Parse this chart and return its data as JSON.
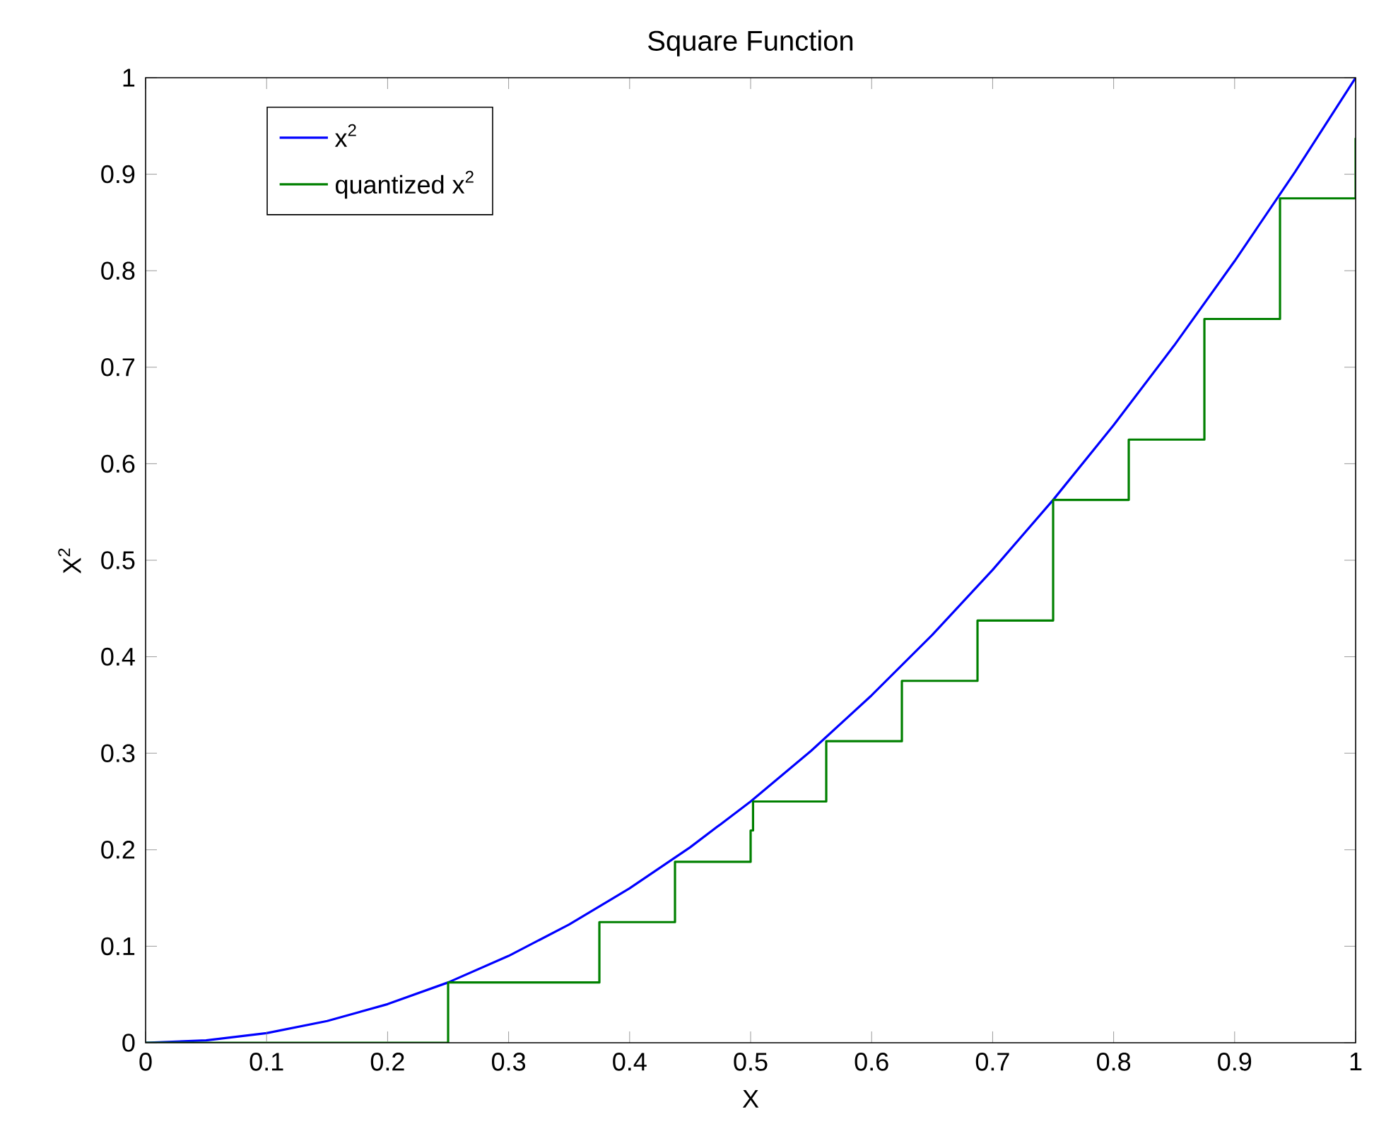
{
  "chart_data": {
    "type": "line",
    "title": "Square Function",
    "xlabel": "X",
    "ylabel": "X$^{2}$",
    "xlim": [
      0,
      1
    ],
    "ylim": [
      0,
      1
    ],
    "xticks": [
      0,
      0.1,
      0.2,
      0.3,
      0.4,
      0.5,
      0.6,
      0.7,
      0.8,
      0.9,
      1
    ],
    "yticks": [
      0,
      0.1,
      0.2,
      0.3,
      0.4,
      0.5,
      0.6,
      0.7,
      0.8,
      0.9,
      1
    ],
    "grid": false,
    "legend": "top left",
    "marker": "none",
    "line_style": "solid",
    "series": [
      {
        "name": "x$^{2}$",
        "color": "#0000ff",
        "x": [
          0,
          0.05,
          0.1,
          0.15,
          0.2,
          0.25,
          0.3,
          0.35,
          0.4,
          0.45,
          0.5,
          0.55,
          0.6,
          0.65,
          0.7,
          0.75,
          0.8,
          0.85,
          0.9,
          0.95,
          1
        ],
        "values": [
          0,
          0.0025,
          0.01,
          0.0225,
          0.04,
          0.0625,
          0.09,
          0.1225,
          0.16,
          0.2025,
          0.25,
          0.3025,
          0.36,
          0.4225,
          0.49,
          0.5625,
          0.64,
          0.7225,
          0.81,
          0.9025,
          1
        ]
      },
      {
        "name": "quantized x$^{2}$",
        "type": "step",
        "color": "#008000",
        "x": [
          0,
          0.25,
          0.375,
          0.4375,
          0.5,
          0.502,
          0.5625,
          0.625,
          0.6875,
          0.75,
          0.8125,
          0.875,
          0.9375,
          1
        ],
        "values": [
          0,
          0.0625,
          0.125,
          0.1875,
          0.22,
          0.25,
          0.3125,
          0.375,
          0.4375,
          0.5625,
          0.625,
          0.75,
          0.875,
          0.9375
        ]
      }
    ]
  }
}
